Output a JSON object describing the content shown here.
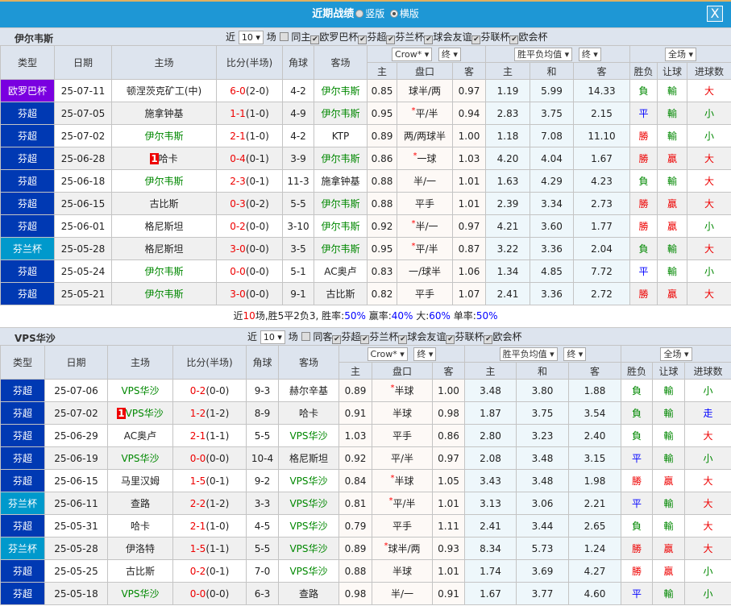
{
  "header": {
    "title": "近期战绩",
    "option_vertical": "竖版",
    "option_horizontal": "横版",
    "close": "X"
  },
  "colors": {
    "titlebar": "#1e97d5",
    "euro": "#7a00e0",
    "fin_league": "#0039b3",
    "fin_cup": "#0099cc"
  },
  "common": {
    "near": "近",
    "games": "场",
    "count": "10",
    "crow": "Crow*",
    "final": "终",
    "avg": "胜平负均值",
    "full": "全场",
    "cols": {
      "type": "类型",
      "date": "日期",
      "home": "主场",
      "score": "比分(半场)",
      "corner": "角球",
      "away": "客场",
      "h": "主",
      "line": "盘口",
      "a": "客",
      "d": "和",
      "res": "胜负",
      "hc": "让球",
      "ou": "进球数"
    }
  },
  "teams": [
    {
      "name": "伊尔韦斯",
      "same_label": "同主",
      "filters": [
        "欧罗巴杯",
        "芬超",
        "芬兰杯",
        "球会友谊",
        "芬联杯",
        "欧会杯"
      ],
      "rows": [
        [
          "欧罗巴杯",
          "25-07-11",
          "顿涅茨克矿工(中)",
          "",
          "6-0",
          "(2-0)",
          "4-2",
          "伊尔韦斯",
          "0.85",
          "球半/两",
          "",
          "0.97",
          "1.19",
          "5.99",
          "14.33",
          "負",
          "輸",
          "大"
        ],
        [
          "芬超",
          "25-07-05",
          "施拿钟基",
          "",
          "1-1",
          "(1-0)",
          "4-9",
          "伊尔韦斯",
          "0.95",
          "平/半",
          "*",
          "0.94",
          "2.83",
          "3.75",
          "2.15",
          "平",
          "輸",
          "小"
        ],
        [
          "芬超",
          "25-07-02",
          "伊尔韦斯",
          "",
          "2-1",
          "(1-0)",
          "4-2",
          "KTP",
          "0.89",
          "两/两球半",
          "",
          "1.00",
          "1.18",
          "7.08",
          "11.10",
          "勝",
          "輸",
          "小"
        ],
        [
          "芬超",
          "25-06-28",
          "哈卡",
          "1",
          "0-4",
          "(0-1)",
          "3-9",
          "伊尔韦斯",
          "0.86",
          "一球",
          "*",
          "1.03",
          "4.20",
          "4.04",
          "1.67",
          "勝",
          "贏",
          "大"
        ],
        [
          "芬超",
          "25-06-18",
          "伊尔韦斯",
          "",
          "2-3",
          "(0-1)",
          "11-3",
          "施拿钟基",
          "0.88",
          "半/一",
          "",
          "1.01",
          "1.63",
          "4.29",
          "4.23",
          "負",
          "輸",
          "大"
        ],
        [
          "芬超",
          "25-06-15",
          "古比斯",
          "",
          "0-3",
          "(0-2)",
          "5-5",
          "伊尔韦斯",
          "0.88",
          "平手",
          "",
          "1.01",
          "2.39",
          "3.34",
          "2.73",
          "勝",
          "贏",
          "大"
        ],
        [
          "芬超",
          "25-06-01",
          "格尼斯坦",
          "",
          "0-2",
          "(0-0)",
          "3-10",
          "伊尔韦斯",
          "0.92",
          "半/一",
          "*",
          "0.97",
          "4.21",
          "3.60",
          "1.77",
          "勝",
          "贏",
          "小"
        ],
        [
          "芬兰杯",
          "25-05-28",
          "格尼斯坦",
          "",
          "3-0",
          "(0-0)",
          "3-5",
          "伊尔韦斯",
          "0.95",
          "平/半",
          "*",
          "0.87",
          "3.22",
          "3.36",
          "2.04",
          "負",
          "輸",
          "大"
        ],
        [
          "芬超",
          "25-05-24",
          "伊尔韦斯",
          "",
          "0-0",
          "(0-0)",
          "5-1",
          "AC奥卢",
          "0.83",
          "一/球半",
          "",
          "1.06",
          "1.34",
          "4.85",
          "7.72",
          "平",
          "輸",
          "小"
        ],
        [
          "芬超",
          "25-05-21",
          "伊尔韦斯",
          "",
          "3-0",
          "(0-0)",
          "9-1",
          "古比斯",
          "0.82",
          "平手",
          "",
          "1.07",
          "2.41",
          "3.36",
          "2.72",
          "勝",
          "贏",
          "大"
        ]
      ],
      "summary": {
        "p1": "近",
        "n": "10",
        "p2": "场,胜5平2负3, 胜率:",
        "win": "50%",
        "p3": " 赢率:",
        "cover": "40%",
        "p4": " 大:",
        "over": "60%",
        "p5": " 单率:",
        "odd": "50%"
      }
    },
    {
      "name": "VPS华沙",
      "same_label": "同客",
      "filters": [
        "芬超",
        "芬兰杯",
        "球会友谊",
        "芬联杯",
        "欧会杯"
      ],
      "rows": [
        [
          "芬超",
          "25-07-06",
          "VPS华沙",
          "",
          "0-2",
          "(0-0)",
          "9-3",
          "赫尔辛基",
          "0.89",
          "半球",
          "*",
          "1.00",
          "3.48",
          "3.80",
          "1.88",
          "負",
          "輸",
          "小"
        ],
        [
          "芬超",
          "25-07-02",
          "VPS华沙",
          "1",
          "1-2",
          "(1-2)",
          "8-9",
          "哈卡",
          "0.91",
          "半球",
          "",
          "0.98",
          "1.87",
          "3.75",
          "3.54",
          "負",
          "輸",
          "走"
        ],
        [
          "芬超",
          "25-06-29",
          "AC奥卢",
          "",
          "2-1",
          "(1-1)",
          "5-5",
          "VPS华沙",
          "1.03",
          "平手",
          "",
          "0.86",
          "2.80",
          "3.23",
          "2.40",
          "負",
          "輸",
          "大"
        ],
        [
          "芬超",
          "25-06-19",
          "VPS华沙",
          "",
          "0-0",
          "(0-0)",
          "10-4",
          "格尼斯坦",
          "0.92",
          "平/半",
          "",
          "0.97",
          "2.08",
          "3.48",
          "3.15",
          "平",
          "輸",
          "小"
        ],
        [
          "芬超",
          "25-06-15",
          "马里汉姆",
          "",
          "1-5",
          "(0-1)",
          "9-2",
          "VPS华沙",
          "0.84",
          "半球",
          "*",
          "1.05",
          "3.43",
          "3.48",
          "1.98",
          "勝",
          "贏",
          "大"
        ],
        [
          "芬兰杯",
          "25-06-11",
          "查路",
          "",
          "2-2",
          "(1-2)",
          "3-3",
          "VPS华沙",
          "0.81",
          "平/半",
          "*",
          "1.01",
          "3.13",
          "3.06",
          "2.21",
          "平",
          "輸",
          "大"
        ],
        [
          "芬超",
          "25-05-31",
          "哈卡",
          "",
          "2-1",
          "(1-0)",
          "4-5",
          "VPS华沙",
          "0.79",
          "平手",
          "",
          "1.11",
          "2.41",
          "3.44",
          "2.65",
          "負",
          "輸",
          "大"
        ],
        [
          "芬兰杯",
          "25-05-28",
          "伊洛特",
          "",
          "1-5",
          "(1-1)",
          "5-5",
          "VPS华沙",
          "0.89",
          "球半/两",
          "*",
          "0.93",
          "8.34",
          "5.73",
          "1.24",
          "勝",
          "贏",
          "大"
        ],
        [
          "芬超",
          "25-05-25",
          "古比斯",
          "",
          "0-2",
          "(0-1)",
          "7-0",
          "VPS华沙",
          "0.88",
          "半球",
          "",
          "1.01",
          "1.74",
          "3.69",
          "4.27",
          "勝",
          "贏",
          "小"
        ],
        [
          "芬超",
          "25-05-18",
          "VPS华沙",
          "",
          "0-0",
          "(0-0)",
          "6-3",
          "查路",
          "0.98",
          "半/一",
          "",
          "0.91",
          "1.67",
          "3.77",
          "4.60",
          "平",
          "輸",
          "小"
        ]
      ]
    }
  ]
}
